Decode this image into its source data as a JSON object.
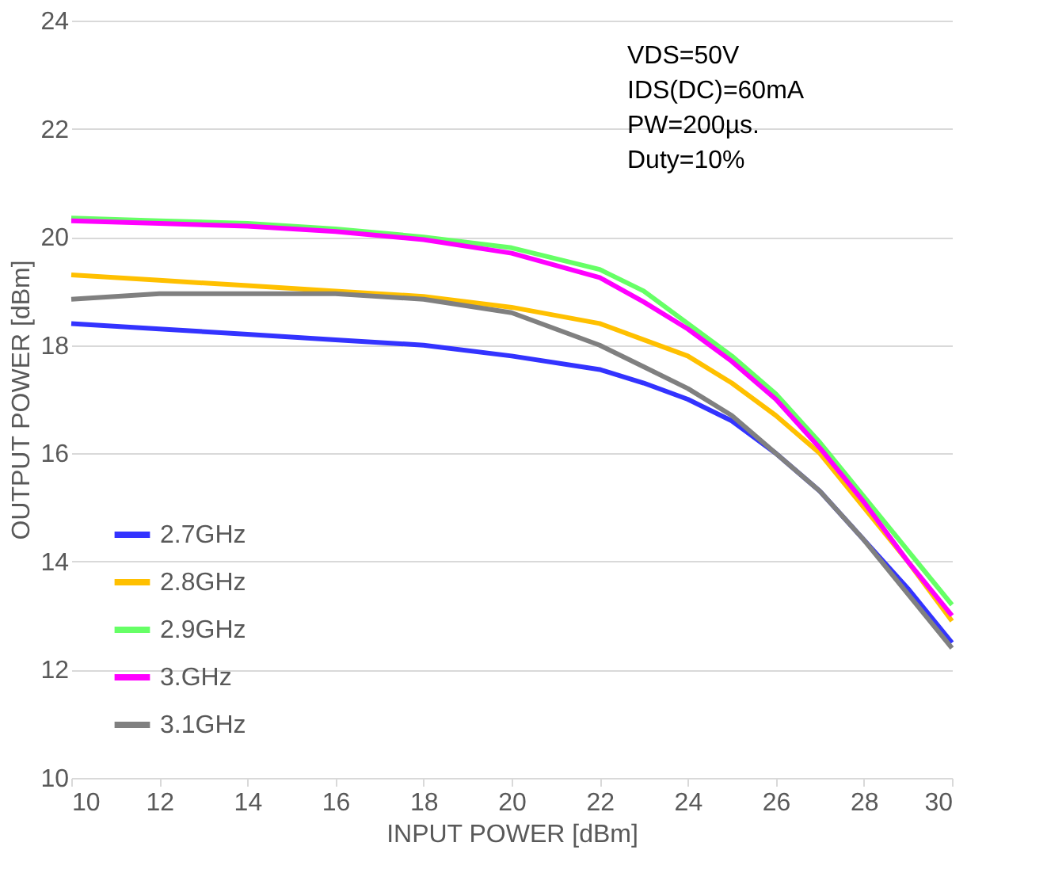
{
  "chart_data": {
    "type": "line",
    "xlabel": "INPUT POWER [dBm]",
    "ylabel": "OUTPUT POWER [dBm]",
    "xlim": [
      10,
      30
    ],
    "xticks": [
      10,
      12,
      14,
      16,
      18,
      20,
      22,
      24,
      26,
      28,
      30
    ],
    "ylim": [
      10,
      24
    ],
    "yticks": [
      10,
      12,
      14,
      16,
      18,
      20,
      22,
      24
    ],
    "grid": "y",
    "legend": "bottom left",
    "marker": "none",
    "line_style": "solid",
    "annotations": [
      "VDS=50V",
      "IDS(DC)=60mA",
      "PW=200µs.",
      "Duty=10%"
    ],
    "x": [
      10,
      12,
      14,
      16,
      18,
      20,
      22,
      23,
      24,
      25,
      26,
      27,
      28,
      29,
      30
    ],
    "series": [
      {
        "name": "2.7GHz",
        "color": "#3333ff",
        "values": [
          18.4,
          18.3,
          18.2,
          18.1,
          18.0,
          17.8,
          17.55,
          17.3,
          17.0,
          16.6,
          16.0,
          15.3,
          14.4,
          13.5,
          12.5
        ]
      },
      {
        "name": "2.8GHz",
        "color": "#ffc000",
        "values": [
          19.3,
          19.2,
          19.1,
          19.0,
          18.9,
          18.7,
          18.4,
          18.1,
          17.8,
          17.3,
          16.7,
          16.0,
          15.0,
          14.0,
          12.9
        ]
      },
      {
        "name": "2.9GHz",
        "color": "#66ff66",
        "values": [
          20.35,
          20.3,
          20.25,
          20.15,
          20.0,
          19.8,
          19.4,
          19.0,
          18.4,
          17.8,
          17.1,
          16.2,
          15.2,
          14.2,
          13.2
        ]
      },
      {
        "name": "3.GHz",
        "color": "#ff00ff",
        "values": [
          20.3,
          20.25,
          20.2,
          20.1,
          19.95,
          19.7,
          19.25,
          18.8,
          18.3,
          17.7,
          17.0,
          16.1,
          15.1,
          14.0,
          13.0
        ]
      },
      {
        "name": "3.1GHz",
        "color": "#808080",
        "values": [
          18.85,
          18.95,
          18.95,
          18.95,
          18.85,
          18.6,
          18.0,
          17.6,
          17.2,
          16.7,
          16.0,
          15.3,
          14.4,
          13.4,
          12.4
        ]
      }
    ]
  }
}
